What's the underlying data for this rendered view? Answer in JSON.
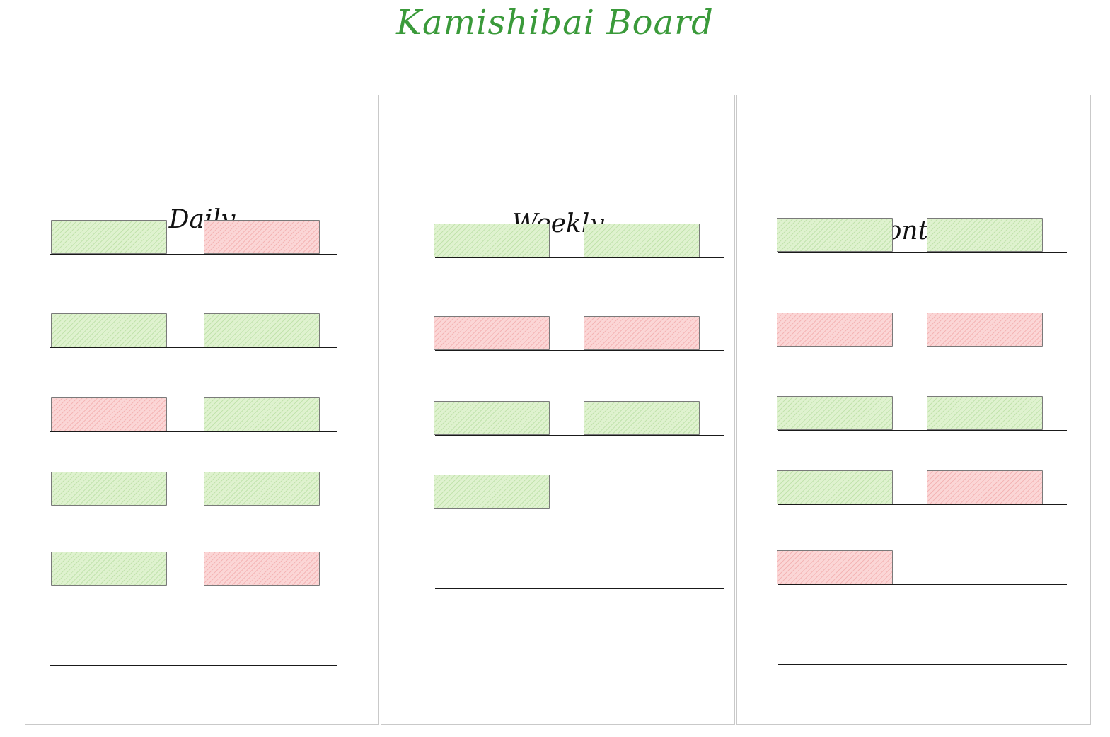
{
  "title": "Kamishibai Board",
  "colors": {
    "title": "#3a9a3a",
    "card_ok": "#dff2cf",
    "card_not_ok": "#fbd6d6",
    "line": "#1a1a1a",
    "panel_border": "#c9c9c9"
  },
  "columns": [
    {
      "label": "Daily",
      "rows": [
        [
          "ok",
          "not-ok"
        ],
        [
          "ok",
          "ok"
        ],
        [
          "not-ok",
          "ok"
        ],
        [
          "ok",
          "ok"
        ],
        [
          "ok",
          "not-ok"
        ],
        []
      ]
    },
    {
      "label": "Weekly",
      "rows": [
        [
          "ok",
          "ok"
        ],
        [
          "not-ok",
          "not-ok"
        ],
        [
          "ok",
          "ok"
        ],
        [
          "ok"
        ],
        [],
        []
      ]
    },
    {
      "label": "Monthly",
      "rows": [
        [
          "ok",
          "ok"
        ],
        [
          "not-ok",
          "not-ok"
        ],
        [
          "ok",
          "ok"
        ],
        [
          "ok",
          "not-ok"
        ],
        [
          "not-ok"
        ],
        []
      ]
    }
  ]
}
